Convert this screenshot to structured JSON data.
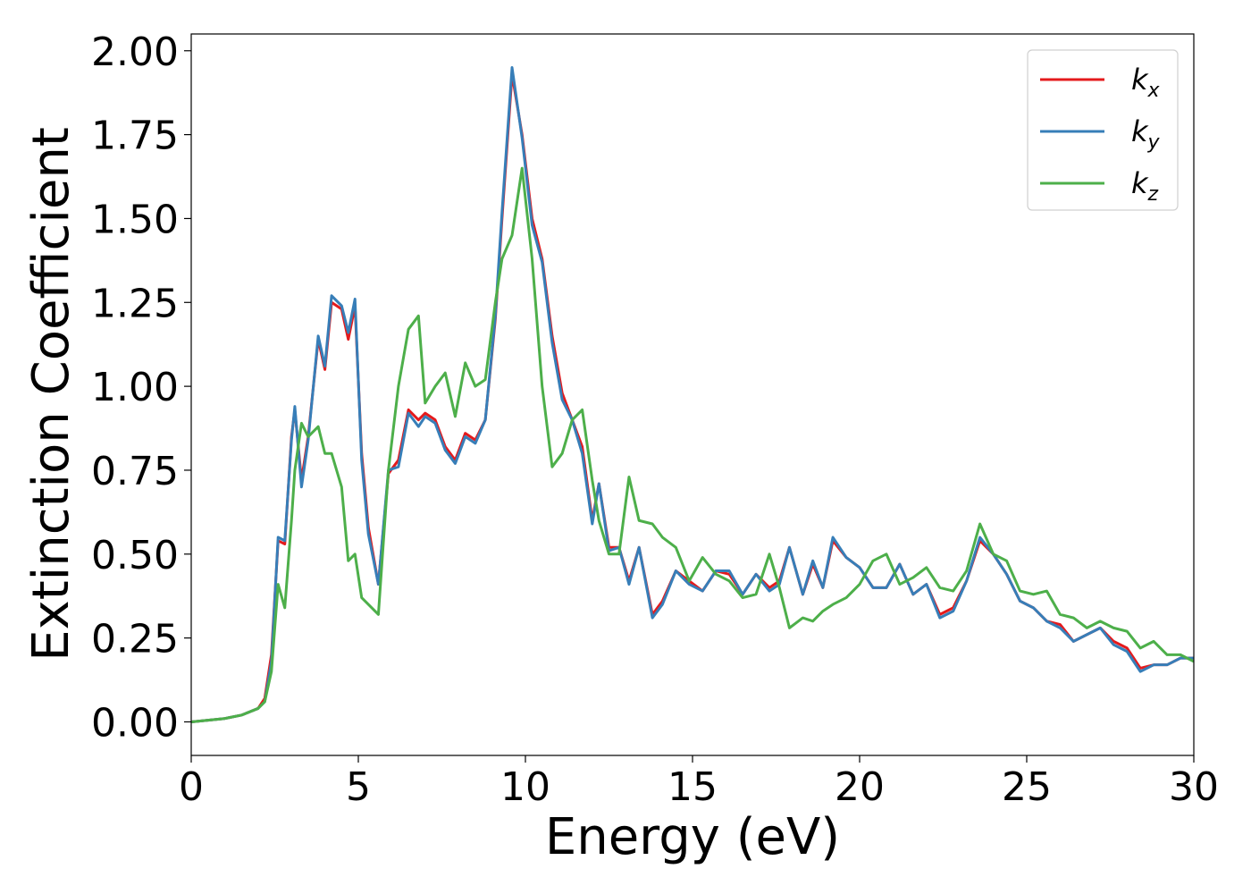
{
  "chart_data": {
    "type": "line",
    "xlabel": "Energy (eV)",
    "ylabel": "Extinction Coefficient",
    "xlim": [
      0,
      30
    ],
    "ylim": [
      -0.1,
      2.05
    ],
    "xticks": [
      0,
      5,
      10,
      15,
      20,
      25,
      30
    ],
    "yticks": [
      {
        "value": 0,
        "label": "0.00"
      },
      {
        "value": 0.25,
        "label": "0.25"
      },
      {
        "value": 0.5,
        "label": "0.50"
      },
      {
        "value": 0.75,
        "label": "0.75"
      },
      {
        "value": 1,
        "label": "1.00"
      },
      {
        "value": 1.25,
        "label": "1.25"
      },
      {
        "value": 1.5,
        "label": "1.50"
      },
      {
        "value": 1.75,
        "label": "1.75"
      },
      {
        "value": 2,
        "label": "2.00"
      }
    ],
    "legend": "upper right",
    "x": [
      0,
      1,
      1.5,
      2,
      2.2,
      2.4,
      2.6,
      2.8,
      3.0,
      3.1,
      3.3,
      3.5,
      3.8,
      4.0,
      4.2,
      4.5,
      4.7,
      4.9,
      5.1,
      5.3,
      5.6,
      5.9,
      6.2,
      6.5,
      6.8,
      7.0,
      7.3,
      7.6,
      7.9,
      8.2,
      8.5,
      8.8,
      9.1,
      9.3,
      9.6,
      9.9,
      10.2,
      10.5,
      10.8,
      11.1,
      11.4,
      11.7,
      12.0,
      12.2,
      12.5,
      12.8,
      13.1,
      13.4,
      13.8,
      14.1,
      14.5,
      14.9,
      15.3,
      15.7,
      16.1,
      16.5,
      16.9,
      17.3,
      17.6,
      17.9,
      18.3,
      18.6,
      18.9,
      19.2,
      19.6,
      20.0,
      20.4,
      20.8,
      21.2,
      21.6,
      22.0,
      22.4,
      22.8,
      23.2,
      23.6,
      24.0,
      24.4,
      24.8,
      25.2,
      25.6,
      26.0,
      26.4,
      26.8,
      27.2,
      27.6,
      28.0,
      28.4,
      28.8,
      29.2,
      29.6,
      30.0
    ],
    "series": [
      {
        "name": "kx",
        "color": "#e41a1c",
        "values": [
          0,
          0.01,
          0.02,
          0.04,
          0.07,
          0.2,
          0.54,
          0.53,
          0.85,
          0.93,
          0.72,
          0.85,
          1.14,
          1.05,
          1.25,
          1.23,
          1.14,
          1.24,
          0.8,
          0.58,
          0.41,
          0.74,
          0.78,
          0.93,
          0.9,
          0.92,
          0.9,
          0.82,
          0.78,
          0.86,
          0.84,
          0.9,
          1.2,
          1.5,
          1.93,
          1.75,
          1.5,
          1.38,
          1.15,
          0.98,
          0.9,
          0.82,
          0.6,
          0.71,
          0.52,
          0.52,
          0.42,
          0.52,
          0.32,
          0.36,
          0.45,
          0.42,
          0.39,
          0.45,
          0.44,
          0.38,
          0.44,
          0.4,
          0.42,
          0.52,
          0.38,
          0.47,
          0.4,
          0.54,
          0.49,
          0.46,
          0.4,
          0.4,
          0.47,
          0.38,
          0.41,
          0.32,
          0.34,
          0.42,
          0.54,
          0.5,
          0.44,
          0.36,
          0.34,
          0.3,
          0.29,
          0.24,
          0.26,
          0.28,
          0.24,
          0.22,
          0.16,
          0.17,
          0.17,
          0.19,
          0.19
        ]
      },
      {
        "name": "ky",
        "color": "#377eb8",
        "values": [
          0,
          0.01,
          0.02,
          0.04,
          0.06,
          0.18,
          0.55,
          0.54,
          0.84,
          0.94,
          0.7,
          0.84,
          1.15,
          1.06,
          1.27,
          1.24,
          1.16,
          1.26,
          0.78,
          0.56,
          0.41,
          0.75,
          0.76,
          0.92,
          0.88,
          0.91,
          0.89,
          0.81,
          0.77,
          0.85,
          0.83,
          0.9,
          1.21,
          1.52,
          1.95,
          1.74,
          1.48,
          1.37,
          1.13,
          0.96,
          0.9,
          0.8,
          0.59,
          0.71,
          0.51,
          0.52,
          0.41,
          0.52,
          0.31,
          0.35,
          0.45,
          0.41,
          0.39,
          0.45,
          0.45,
          0.38,
          0.44,
          0.39,
          0.41,
          0.52,
          0.38,
          0.48,
          0.4,
          0.55,
          0.49,
          0.46,
          0.4,
          0.4,
          0.47,
          0.38,
          0.41,
          0.31,
          0.33,
          0.42,
          0.55,
          0.5,
          0.44,
          0.36,
          0.34,
          0.3,
          0.28,
          0.24,
          0.26,
          0.28,
          0.23,
          0.21,
          0.15,
          0.17,
          0.17,
          0.19,
          0.19
        ]
      },
      {
        "name": "kz",
        "color": "#4daf4a",
        "values": [
          0,
          0.01,
          0.02,
          0.04,
          0.06,
          0.15,
          0.41,
          0.34,
          0.6,
          0.75,
          0.89,
          0.85,
          0.88,
          0.8,
          0.8,
          0.7,
          0.48,
          0.5,
          0.37,
          0.35,
          0.32,
          0.75,
          1.0,
          1.17,
          1.21,
          0.95,
          1.0,
          1.04,
          0.91,
          1.07,
          1.0,
          1.02,
          1.25,
          1.38,
          1.45,
          1.65,
          1.38,
          1.0,
          0.76,
          0.8,
          0.9,
          0.93,
          0.72,
          0.6,
          0.5,
          0.5,
          0.73,
          0.6,
          0.59,
          0.55,
          0.52,
          0.42,
          0.49,
          0.44,
          0.42,
          0.37,
          0.38,
          0.5,
          0.4,
          0.28,
          0.31,
          0.3,
          0.33,
          0.35,
          0.37,
          0.41,
          0.48,
          0.5,
          0.41,
          0.43,
          0.46,
          0.4,
          0.39,
          0.45,
          0.59,
          0.5,
          0.48,
          0.39,
          0.38,
          0.39,
          0.32,
          0.31,
          0.28,
          0.3,
          0.28,
          0.27,
          0.22,
          0.24,
          0.2,
          0.2,
          0.18
        ]
      }
    ]
  }
}
